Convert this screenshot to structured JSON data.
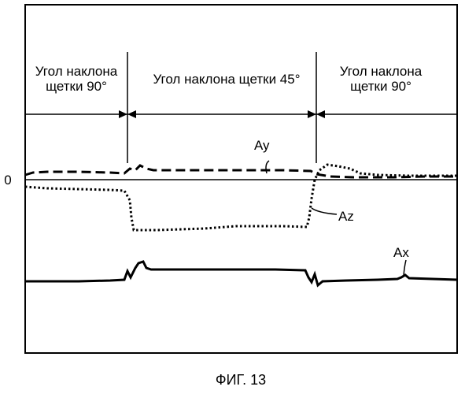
{
  "zero_label": "0",
  "phases": [
    {
      "line1": "Угол наклона",
      "line2": "щетки 90°"
    },
    {
      "line1": "Угол наклона щетки 45°"
    },
    {
      "line1": "Угол наклона",
      "line2": "щетки 90°"
    }
  ],
  "series_labels": {
    "ay": "Ay",
    "az": "Az",
    "ax": "Ax"
  },
  "caption": "ФИГ. 13"
}
